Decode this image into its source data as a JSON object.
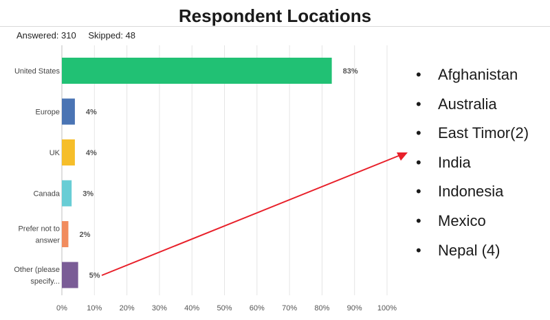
{
  "slide": {
    "title": "Respondent Locations",
    "answered": "Answered: 310",
    "skipped": "Skipped: 48"
  },
  "chart_data": {
    "type": "bar",
    "orientation": "horizontal",
    "categories": [
      "United States",
      "Europe",
      "UK",
      "Canada",
      "Prefer not to answer",
      "Other (please specify)"
    ],
    "category_labels": [
      [
        "United States"
      ],
      [
        "Europe"
      ],
      [
        "UK"
      ],
      [
        "Canada"
      ],
      [
        "Prefer not to",
        "answer"
      ],
      [
        "Other (please",
        "specify..."
      ]
    ],
    "values": [
      83,
      4,
      4,
      3,
      2,
      5
    ],
    "value_labels": [
      "83%",
      "4%",
      "4%",
      "3%",
      "2%",
      "5%"
    ],
    "colors": [
      "#21c174",
      "#4a74b4",
      "#f6be2a",
      "#68cdd5",
      "#f18c5e",
      "#7a5c96"
    ],
    "xlim": [
      0,
      100
    ],
    "xticks": [
      "0%",
      "10%",
      "20%",
      "30%",
      "40%",
      "50%",
      "60%",
      "70%",
      "80%",
      "90%",
      "100%"
    ],
    "grid": true,
    "title": "",
    "xlabel": "",
    "ylabel": ""
  },
  "other_locations": [
    "Afghanistan",
    "Australia",
    "East Timor(2)",
    "India",
    "Indonesia",
    "Mexico",
    "Nepal (4)"
  ],
  "bullet_glyph": "•",
  "arrow_color": "#e8202a"
}
